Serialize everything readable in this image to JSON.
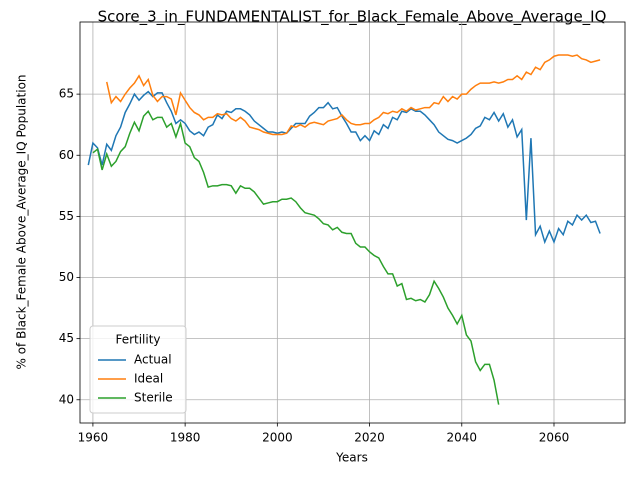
{
  "chart_data": {
    "type": "line",
    "title": "Score_3_in_FUNDAMENTALIST_for_Black_Female_Above_Average_IQ",
    "x_label": "Years",
    "y_label": "% of Black_Female Above_Average_IQ Population",
    "legend_title": "Fertility",
    "legend": "lower left",
    "grid": true,
    "xlim": [
      1957.2,
      2075.4
    ],
    "ylim": [
      38.1,
      70.9
    ],
    "xticks": [
      1960,
      1980,
      2000,
      2020,
      2040,
      2060
    ],
    "yticks": [
      40,
      45,
      50,
      55,
      60,
      65
    ],
    "x": [
      1959,
      1960,
      1961,
      1962,
      1963,
      1964,
      1965,
      1966,
      1967,
      1968,
      1969,
      1970,
      1971,
      1972,
      1973,
      1974,
      1975,
      1976,
      1977,
      1978,
      1979,
      1980,
      1981,
      1982,
      1983,
      1984,
      1985,
      1986,
      1987,
      1988,
      1989,
      1990,
      1991,
      1992,
      1993,
      1994,
      1995,
      1996,
      1997,
      1998,
      1999,
      2000,
      2001,
      2002,
      2003,
      2004,
      2005,
      2006,
      2007,
      2008,
      2009,
      2010,
      2011,
      2012,
      2013,
      2014,
      2015,
      2016,
      2017,
      2018,
      2019,
      2020,
      2021,
      2022,
      2023,
      2024,
      2025,
      2026,
      2027,
      2028,
      2029,
      2030,
      2031,
      2032,
      2033,
      2034,
      2035,
      2036,
      2037,
      2038,
      2039,
      2040,
      2041,
      2042,
      2043,
      2044,
      2045,
      2046,
      2047,
      2048,
      2049,
      2050,
      2051,
      2052,
      2053,
      2054,
      2055,
      2056,
      2057,
      2058,
      2059,
      2060,
      2061,
      2062,
      2063,
      2064,
      2065,
      2066,
      2067,
      2068,
      2069,
      2070
    ],
    "series": [
      {
        "name": "Actual",
        "color": "#1f77b4",
        "values": [
          59.2,
          61.0,
          60.6,
          59.2,
          60.9,
          60.4,
          61.6,
          62.3,
          63.5,
          64.2,
          65.0,
          64.5,
          64.9,
          65.2,
          64.8,
          65.1,
          65.1,
          64.3,
          63.6,
          62.6,
          62.9,
          62.6,
          62.0,
          61.7,
          61.9,
          61.6,
          62.3,
          62.5,
          63.3,
          63.0,
          63.6,
          63.5,
          63.8,
          63.8,
          63.6,
          63.3,
          62.8,
          62.5,
          62.2,
          61.9,
          61.9,
          61.8,
          61.9,
          61.8,
          62.2,
          62.6,
          62.6,
          62.6,
          63.2,
          63.5,
          63.9,
          63.9,
          64.3,
          63.8,
          63.9,
          63.2,
          62.6,
          61.9,
          61.9,
          61.2,
          61.6,
          61.2,
          62.0,
          61.7,
          62.5,
          62.2,
          63.1,
          62.9,
          63.6,
          63.5,
          63.8,
          63.6,
          63.6,
          63.3,
          62.9,
          62.5,
          61.9,
          61.6,
          61.3,
          61.2,
          61.0,
          61.2,
          61.4,
          61.7,
          62.2,
          62.4,
          63.1,
          62.9,
          63.5,
          62.8,
          63.4,
          62.3,
          62.9,
          61.5,
          62.1,
          54.7,
          61.4,
          53.5,
          54.2,
          52.9,
          53.8,
          52.9,
          54.0,
          53.5,
          54.6,
          54.3,
          55.1,
          54.7,
          55.1,
          54.5,
          54.6,
          53.6
        ]
      },
      {
        "name": "Ideal",
        "color": "#ff7f0e",
        "values": [
          null,
          null,
          null,
          null,
          66.0,
          64.3,
          64.8,
          64.4,
          65.0,
          65.5,
          65.9,
          66.5,
          65.7,
          66.2,
          64.9,
          64.4,
          64.8,
          64.8,
          64.6,
          63.3,
          65.1,
          64.5,
          63.9,
          63.5,
          63.3,
          62.9,
          63.1,
          63.1,
          63.4,
          63.3,
          63.4,
          63.0,
          62.8,
          63.1,
          62.8,
          62.3,
          62.2,
          62.1,
          61.9,
          61.8,
          61.7,
          61.7,
          61.7,
          61.8,
          62.4,
          62.3,
          62.5,
          62.3,
          62.6,
          62.7,
          62.6,
          62.5,
          62.8,
          62.9,
          63.0,
          63.3,
          62.9,
          62.6,
          62.5,
          62.5,
          62.6,
          62.6,
          62.9,
          63.1,
          63.5,
          63.4,
          63.6,
          63.5,
          63.8,
          63.6,
          63.9,
          63.7,
          63.8,
          63.9,
          63.9,
          64.3,
          64.2,
          64.8,
          64.4,
          64.8,
          64.6,
          65.0,
          65.0,
          65.4,
          65.7,
          65.9,
          65.9,
          65.9,
          66.0,
          65.9,
          66.0,
          66.2,
          66.2,
          66.5,
          66.2,
          66.8,
          66.6,
          67.2,
          67.0,
          67.6,
          67.8,
          68.1,
          68.2,
          68.2,
          68.2,
          68.1,
          68.2,
          67.9,
          67.8,
          67.6,
          67.7,
          67.8
        ]
      },
      {
        "name": "Sterile",
        "color": "#2ca02c",
        "values": [
          null,
          60.2,
          60.5,
          58.8,
          60.1,
          59.1,
          59.5,
          60.3,
          60.7,
          61.8,
          62.7,
          62.0,
          63.2,
          63.6,
          62.9,
          63.1,
          63.1,
          62.3,
          62.6,
          61.5,
          62.6,
          61.0,
          60.7,
          59.8,
          59.5,
          58.6,
          57.4,
          57.5,
          57.5,
          57.6,
          57.6,
          57.5,
          56.9,
          57.5,
          57.3,
          57.3,
          57.0,
          56.5,
          56.0,
          56.1,
          56.2,
          56.2,
          56.4,
          56.4,
          56.5,
          56.2,
          55.7,
          55.3,
          55.2,
          55.1,
          54.8,
          54.4,
          54.3,
          53.9,
          54.1,
          53.7,
          53.6,
          53.6,
          52.8,
          52.5,
          52.5,
          52.1,
          51.8,
          51.6,
          50.9,
          50.3,
          50.3,
          49.3,
          49.5,
          48.2,
          48.3,
          48.1,
          48.2,
          48.0,
          48.6,
          49.7,
          49.1,
          48.4,
          47.5,
          46.9,
          46.2,
          46.9,
          45.3,
          44.8,
          43.1,
          42.4,
          42.9,
          42.9,
          41.6,
          39.6,
          null,
          null,
          null,
          null,
          null,
          null,
          null,
          null,
          null,
          null,
          null,
          null,
          null,
          null,
          null,
          null,
          null,
          null,
          null,
          null,
          null,
          null
        ]
      }
    ]
  }
}
